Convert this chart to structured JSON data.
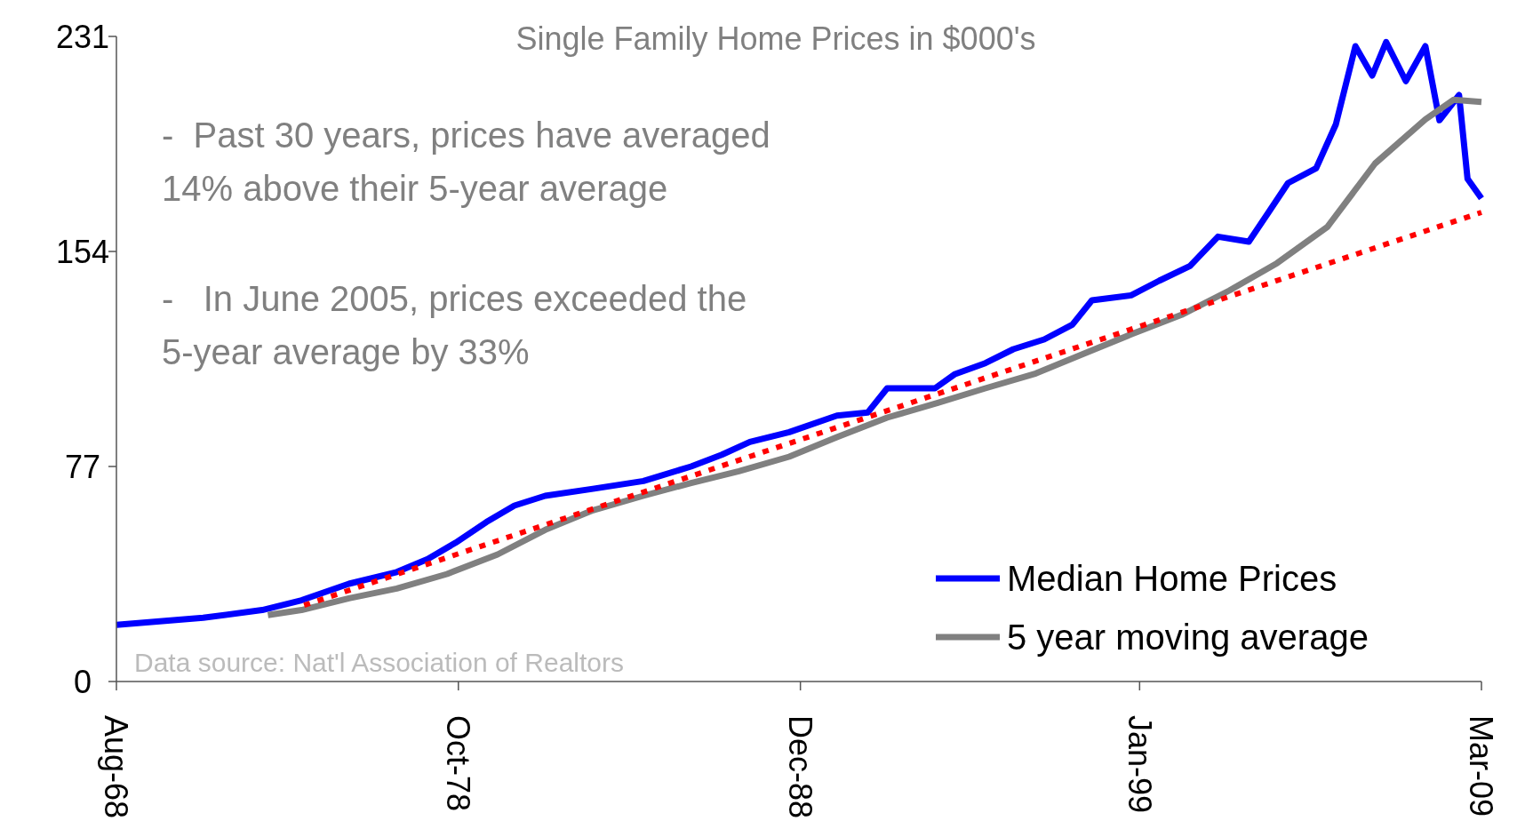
{
  "chart_data": {
    "type": "line",
    "title": "Single Family Home Prices in $000's",
    "annotations": [
      "-  Past 30 years, prices have averaged 14% above their 5-year average",
      "-   In June 2005, prices exceeded the 5-year average by 33%",
      "Data source: Nat'l Association of Realtors"
    ],
    "xlim": [
      "1968-08",
      "2009-03"
    ],
    "xticks": [
      {
        "value": "1968-08",
        "label": "Aug-68"
      },
      {
        "value": "1978-10",
        "label": "Oct-78"
      },
      {
        "value": "1988-12",
        "label": "Dec-88"
      },
      {
        "value": "1999-01",
        "label": "Jan-99"
      },
      {
        "value": "2009-03",
        "label": "Mar-09"
      }
    ],
    "ylim": [
      0,
      231
    ],
    "yticks": [
      0,
      77,
      154,
      231
    ],
    "grid": false,
    "legend": "bottom right",
    "marker": "none",
    "series": [
      {
        "name": "Median Home Prices",
        "color": "#0000ff",
        "line_style": "solid",
        "x": [
          "1968-08",
          "1971-03",
          "1972-12",
          "1974-02",
          "1975-07",
          "1976-12",
          "1977-11",
          "1978-09",
          "1979-08",
          "1980-06",
          "1981-05",
          "1982-10",
          "1984-04",
          "1985-09",
          "1986-08",
          "1987-06",
          "1988-08",
          "1990-01",
          "1990-12",
          "1991-07",
          "1992-12",
          "1993-07",
          "1994-06",
          "1995-04",
          "1996-03",
          "1997-01",
          "1997-08",
          "1998-10",
          "1999-08",
          "2000-07",
          "2001-05",
          "2002-04",
          "2002-11",
          "2003-06",
          "2004-04",
          "2004-11",
          "2005-06",
          "2005-12",
          "2006-05",
          "2006-12",
          "2007-07",
          "2007-12",
          "2008-07",
          "2008-10",
          "2009-03"
        ],
        "values": [
          20.3,
          22.8,
          25.6,
          29.1,
          35,
          39.2,
          43.8,
          49.7,
          57.1,
          63,
          66.5,
          69,
          71.8,
          77,
          81.2,
          85.8,
          89.3,
          95.2,
          96.3,
          105,
          105,
          110,
          114,
          119,
          122.5,
          127.8,
          136.5,
          138.3,
          143.5,
          148.8,
          159.3,
          157.5,
          168,
          178.5,
          183.8,
          199.5,
          227.5,
          217,
          229,
          215,
          227.5,
          201,
          210,
          180,
          173
        ]
      },
      {
        "name": "5 year moving average",
        "color": "#808080",
        "line_style": "solid",
        "x": [
          "1973-02",
          "1974-02",
          "1975-07",
          "1976-12",
          "1978-06",
          "1979-12",
          "1981-05",
          "1982-10",
          "1984-04",
          "1985-09",
          "1987-02",
          "1988-08",
          "1990-01",
          "1991-07",
          "1993-01",
          "1994-06",
          "1995-12",
          "1997-05",
          "1998-10",
          "2000-04",
          "2001-09",
          "2003-02",
          "2004-08",
          "2006-01",
          "2007-07",
          "2008-05",
          "2009-03"
        ],
        "values": [
          23.8,
          25.6,
          29.8,
          33.3,
          38.5,
          45.5,
          54.3,
          61.3,
          66.5,
          71.1,
          75.3,
          80.5,
          87.5,
          94.5,
          99.8,
          105,
          110.3,
          117.3,
          124.3,
          131.3,
          140,
          149.8,
          162.8,
          185.5,
          201.3,
          208.3,
          207.5
        ]
      },
      {
        "color": "#ff0000",
        "line_style": "dotted",
        "x": [
          "1974-03",
          "2009-03"
        ],
        "values": [
          27.3,
          168
        ]
      }
    ]
  }
}
